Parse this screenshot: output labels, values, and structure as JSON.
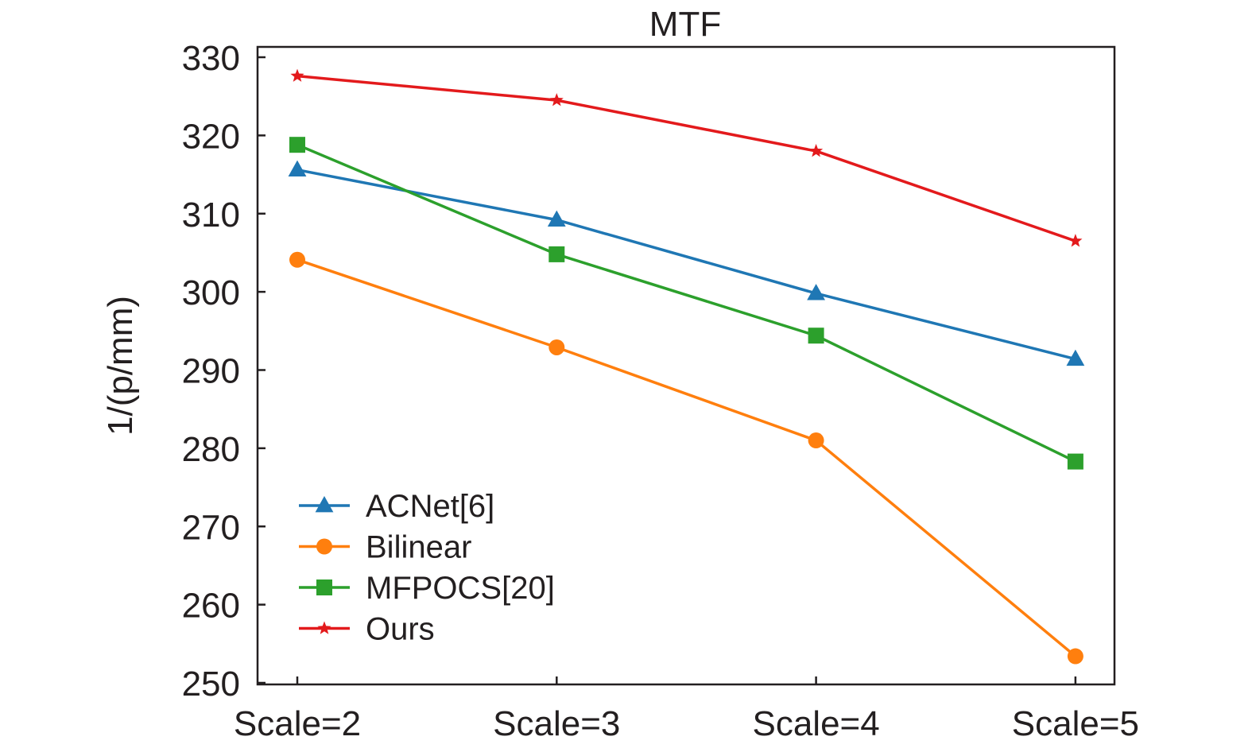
{
  "chart_data": {
    "type": "line",
    "title": "MTF",
    "xlabel": "",
    "ylabel": "1/(p/mm)",
    "categories": [
      "Scale=2",
      "Scale=3",
      "Scale=4",
      "Scale=5"
    ],
    "ylim": [
      250,
      330
    ],
    "yticks": [
      250,
      260,
      270,
      280,
      290,
      300,
      310,
      320,
      330
    ],
    "grid": false,
    "legend_position": "bottom-left",
    "series": [
      {
        "name": "ACNet[6]",
        "color": "#1f77b4",
        "marker": "triangle",
        "values": [
          315.6,
          309.2,
          299.8,
          291.4
        ]
      },
      {
        "name": "Bilinear",
        "color": "#ff7f0e",
        "marker": "circle",
        "values": [
          304.1,
          292.9,
          281.0,
          253.4
        ]
      },
      {
        "name": "MFPOCS[20]",
        "color": "#2ca02c",
        "marker": "square",
        "values": [
          318.8,
          304.8,
          294.4,
          278.3
        ]
      },
      {
        "name": "Ours",
        "color": "#e31a1c",
        "marker": "star",
        "values": [
          327.6,
          324.5,
          318.0,
          306.5
        ]
      }
    ]
  }
}
